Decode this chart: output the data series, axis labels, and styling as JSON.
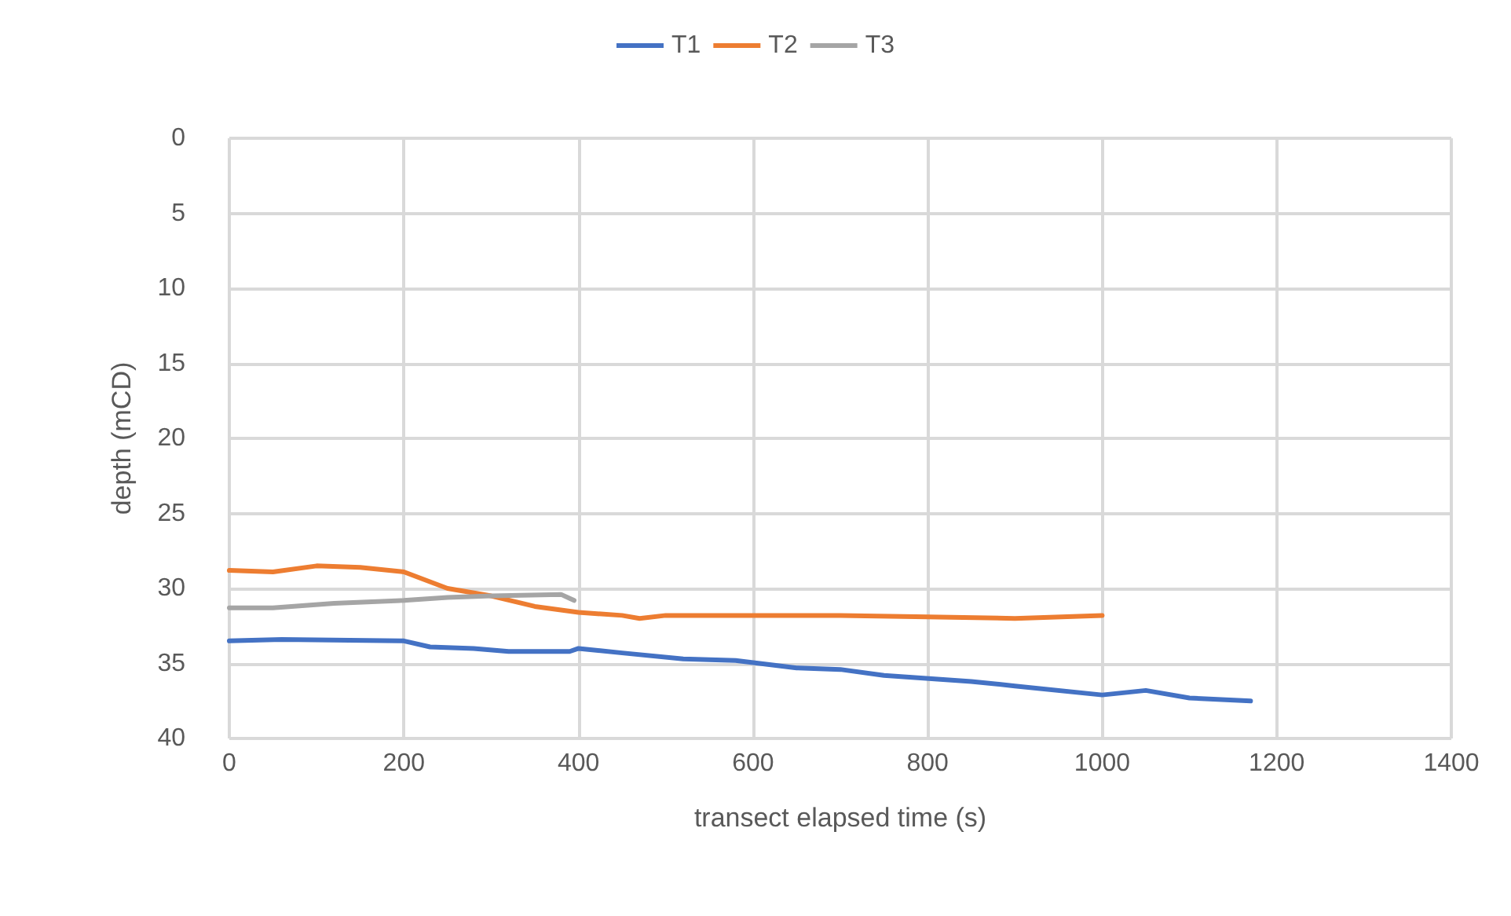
{
  "chart_data": {
    "type": "line",
    "xlabel": "transect elapsed time (s)",
    "ylabel": "depth (mCD)",
    "xlim": [
      0,
      1400
    ],
    "xticks": [
      0,
      200,
      400,
      600,
      800,
      1000,
      1200,
      1400
    ],
    "ylim": [
      40,
      0
    ],
    "yticks": [
      0,
      5,
      10,
      15,
      20,
      25,
      30,
      35,
      40
    ],
    "grid": true,
    "legend": "top",
    "marker": "none",
    "line_style": "solid",
    "series": [
      {
        "name": "T1",
        "color": "#4472c4",
        "x": [
          0,
          60,
          200,
          230,
          280,
          320,
          390,
          400,
          450,
          520,
          580,
          650,
          700,
          750,
          850,
          900,
          1000,
          1050,
          1100,
          1170
        ],
        "values": [
          33.5,
          33.4,
          33.5,
          33.9,
          34.0,
          34.2,
          34.2,
          34.0,
          34.3,
          34.7,
          34.8,
          35.3,
          35.4,
          35.8,
          36.2,
          36.5,
          37.1,
          36.8,
          37.3,
          37.5
        ]
      },
      {
        "name": "T2",
        "color": "#ed7d31",
        "x": [
          0,
          50,
          100,
          150,
          200,
          250,
          300,
          350,
          400,
          450,
          470,
          500,
          600,
          700,
          800,
          900,
          1000
        ],
        "values": [
          28.8,
          28.9,
          28.5,
          28.6,
          28.9,
          30.0,
          30.5,
          31.2,
          31.6,
          31.8,
          32.0,
          31.8,
          31.8,
          31.8,
          31.9,
          32.0,
          31.8
        ]
      },
      {
        "name": "T3",
        "color": "#a5a5a5",
        "x": [
          0,
          50,
          120,
          200,
          250,
          300,
          380,
          395
        ],
        "values": [
          31.3,
          31.3,
          31.0,
          30.8,
          30.6,
          30.5,
          30.4,
          30.8
        ]
      }
    ]
  }
}
